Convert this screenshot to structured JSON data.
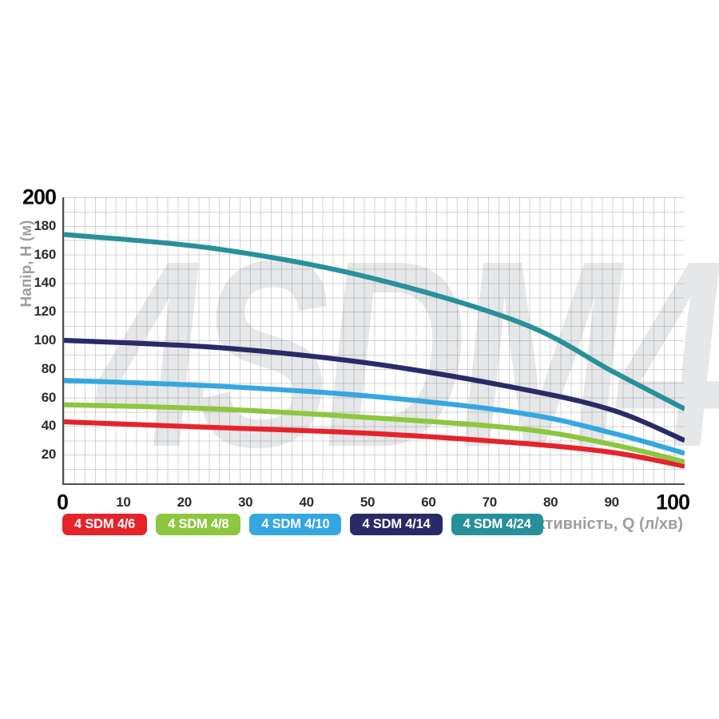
{
  "watermark": "4SDM4",
  "axes": {
    "y_title": "Напір, H (м)",
    "x_title": "Продуктивність, Q (л/хв)",
    "y_ticks": [
      200,
      180,
      160,
      140,
      120,
      100,
      80,
      60,
      40,
      20
    ],
    "x_ticks": [
      0,
      10,
      20,
      30,
      40,
      50,
      60,
      70,
      80,
      90,
      100
    ],
    "y_bold_tick": 200,
    "x_bold_ticks": [
      0,
      100
    ]
  },
  "chart_data": {
    "type": "line",
    "title": "",
    "xlabel": "Продуктивність, Q (л/хв)",
    "ylabel": "Напір, H (м)",
    "xlim": [
      0,
      102
    ],
    "ylim": [
      0,
      200
    ],
    "grid": true,
    "legend_position": "bottom",
    "series": [
      {
        "name": "4 SDM 4/6",
        "color": "#e5232b",
        "points": [
          [
            0,
            43
          ],
          [
            25,
            39
          ],
          [
            50,
            35
          ],
          [
            75,
            28
          ],
          [
            90,
            21.5
          ],
          [
            101.7,
            12
          ]
        ]
      },
      {
        "name": "4 SDM 4/8",
        "color": "#8dc63f",
        "points": [
          [
            0,
            55
          ],
          [
            25,
            52
          ],
          [
            50,
            46
          ],
          [
            75,
            38
          ],
          [
            90,
            27
          ],
          [
            101.7,
            15
          ]
        ]
      },
      {
        "name": "4 SDM 4/10",
        "color": "#34a7e0",
        "points": [
          [
            0,
            72
          ],
          [
            25,
            68
          ],
          [
            50,
            61
          ],
          [
            75,
            49
          ],
          [
            90,
            35
          ],
          [
            101.7,
            21
          ]
        ]
      },
      {
        "name": "4 SDM 4/14",
        "color": "#2b2a68",
        "points": [
          [
            0,
            100
          ],
          [
            25,
            95
          ],
          [
            50,
            84
          ],
          [
            75,
            66
          ],
          [
            90,
            51
          ],
          [
            101.7,
            30
          ]
        ]
      },
      {
        "name": "4 SDM 4/24",
        "color": "#28909a",
        "points": [
          [
            0,
            174
          ],
          [
            25,
            164
          ],
          [
            50,
            144
          ],
          [
            75,
            112
          ],
          [
            90,
            78
          ],
          [
            101.7,
            52
          ]
        ]
      }
    ]
  },
  "colors": {
    "watermark": "#e6e7e8",
    "grid": "#d8d9db",
    "axis_line": "#4d4e50",
    "tick_text": "#2e2b28",
    "bold_tick_text": "#0c0c0c",
    "muted_text": "#9c9ea1"
  }
}
